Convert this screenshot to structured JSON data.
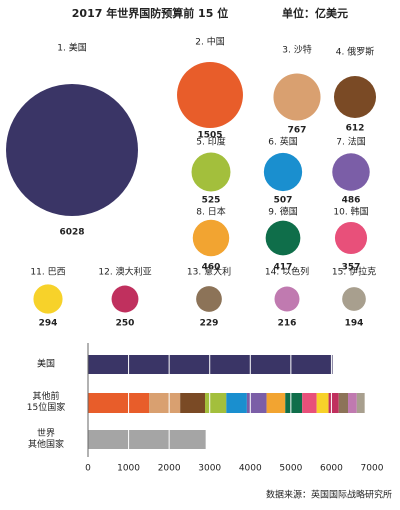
{
  "chart_data": [
    {
      "type": "bubble",
      "title": "2017 年世界国防预算前 15 位",
      "subtitle": "单位：亿美元",
      "labels": [
        "1. 美国",
        "2. 中国",
        "3. 沙特",
        "4. 俄罗斯",
        "5. 印度",
        "6. 英国",
        "7. 法国",
        "8. 日本",
        "9. 德国",
        "10. 韩国",
        "11. 巴西",
        "12. 澳大利亚",
        "13. 意大利",
        "14. 以色列",
        "15. 伊拉克"
      ],
      "values": [
        6028,
        1505,
        767,
        612,
        525,
        507,
        486,
        460,
        417,
        357,
        294,
        250,
        229,
        216,
        194
      ],
      "colors": [
        "#3a3566",
        "#e85d2a",
        "#d9a070",
        "#7a4a25",
        "#a3bf3c",
        "#1a8fcf",
        "#7b5ea7",
        "#f2a431",
        "#0f6e4a",
        "#e8507a",
        "#f7d22a",
        "#c0305e",
        "#8c7358",
        "#c07ab0",
        "#a89f8e"
      ]
    },
    {
      "type": "stacked-bar",
      "categories": [
        "美国",
        "其他前\n15位国家",
        "世界\n其他国家"
      ],
      "other_countries_value": 2900,
      "other_countries_color": "#a5a5a5",
      "xlim": [
        0,
        7000
      ],
      "xticks": [
        0,
        1000,
        2000,
        3000,
        4000,
        5000,
        6000,
        7000
      ],
      "grid": true,
      "source": "数据来源：英国国际战略研究所"
    }
  ]
}
